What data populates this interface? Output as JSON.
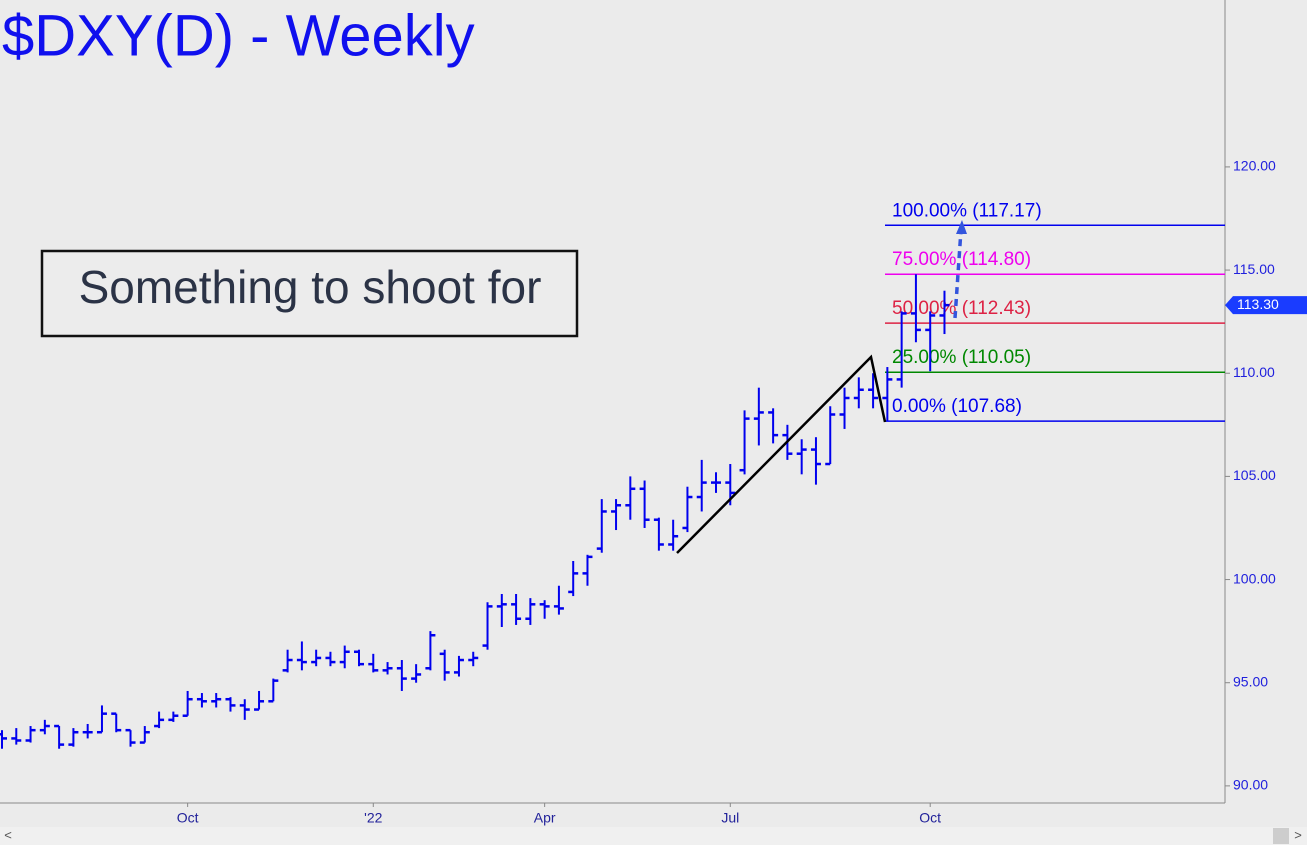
{
  "chart_data": {
    "type": "ohlc",
    "title": "$DXY(D) - Weekly",
    "annotation": "Something to shoot for",
    "color": "#0000ee",
    "categories": [
      null,
      null,
      null,
      null,
      null,
      null,
      null,
      null,
      null,
      null,
      null,
      null,
      null,
      "Oct",
      null,
      null,
      null,
      null,
      null,
      null,
      null,
      null,
      null,
      null,
      null,
      null,
      "'22",
      null,
      null,
      null,
      null,
      null,
      null,
      null,
      null,
      null,
      null,
      null,
      "Apr",
      null,
      null,
      null,
      null,
      null,
      null,
      null,
      null,
      null,
      null,
      null,
      null,
      "Jul",
      null,
      null,
      null,
      null,
      null,
      null,
      null,
      null,
      null,
      null,
      null,
      null,
      null,
      "Oct",
      null
    ],
    "open": [
      92.5,
      92.3,
      92.2,
      92.7,
      92.9,
      92.0,
      92.6,
      92.6,
      93.5,
      92.7,
      92.1,
      92.9,
      93.2,
      93.4,
      94.2,
      94.1,
      94.2,
      93.9,
      93.7,
      94.1,
      95.6,
      96.1,
      96.0,
      96.2,
      96.0,
      96.5,
      95.9,
      95.6,
      95.7,
      95.2,
      95.7,
      96.4,
      95.5,
      96.1,
      96.8,
      98.7,
      98.8,
      98.1,
      98.8,
      98.7,
      99.4,
      100.3,
      101.5,
      103.3,
      103.6,
      104.4,
      102.9,
      101.7,
      102.5,
      104.0,
      104.7,
      104.7,
      105.3,
      107.8,
      108.1,
      107.0,
      106.1,
      106.3,
      105.6,
      108.0,
      108.8,
      109.2,
      108.8,
      109.7,
      112.9,
      112.1,
      112.8
    ],
    "high": [
      92.7,
      92.8,
      92.9,
      93.2,
      92.9,
      92.8,
      93.0,
      93.9,
      93.5,
      92.7,
      92.9,
      93.6,
      93.6,
      94.6,
      94.5,
      94.5,
      94.3,
      94.2,
      94.6,
      95.2,
      96.6,
      97.0,
      96.6,
      96.5,
      96.8,
      96.6,
      96.4,
      96.0,
      96.1,
      95.9,
      97.5,
      96.6,
      96.3,
      96.5,
      98.9,
      99.3,
      99.3,
      99.1,
      99.0,
      99.7,
      100.9,
      101.2,
      103.9,
      103.9,
      105.0,
      104.8,
      103.0,
      102.9,
      104.5,
      105.8,
      105.2,
      105.6,
      108.2,
      109.3,
      108.3,
      107.5,
      106.8,
      106.9,
      108.4,
      109.3,
      109.8,
      110.0,
      110.3,
      113.0,
      114.8,
      113.0,
      114.0
    ],
    "low": [
      91.8,
      92.0,
      92.1,
      92.5,
      91.8,
      91.9,
      92.3,
      92.6,
      92.6,
      91.9,
      92.1,
      92.8,
      93.1,
      93.4,
      93.8,
      93.8,
      93.6,
      93.2,
      93.7,
      94.1,
      95.5,
      95.6,
      95.8,
      95.8,
      95.7,
      95.8,
      95.5,
      95.4,
      94.6,
      95.0,
      95.6,
      95.1,
      95.3,
      95.8,
      96.6,
      97.7,
      97.8,
      97.8,
      98.1,
      98.3,
      99.2,
      99.7,
      101.3,
      102.4,
      102.9,
      102.5,
      101.4,
      101.4,
      102.3,
      103.3,
      104.2,
      103.6,
      105.1,
      106.5,
      106.6,
      105.8,
      105.1,
      104.6,
      105.6,
      107.3,
      108.3,
      108.3,
      107.7,
      109.3,
      111.5,
      110.1,
      111.9
    ],
    "close": [
      92.3,
      92.2,
      92.7,
      92.9,
      92.0,
      92.6,
      92.6,
      93.5,
      92.7,
      92.1,
      92.6,
      93.2,
      93.4,
      94.2,
      94.1,
      94.2,
      93.9,
      93.7,
      94.1,
      95.1,
      96.1,
      96.0,
      96.2,
      96.0,
      96.5,
      95.9,
      95.6,
      95.7,
      95.2,
      95.4,
      97.3,
      95.5,
      96.1,
      96.2,
      98.7,
      98.8,
      98.1,
      98.8,
      98.7,
      98.6,
      100.3,
      101.1,
      103.3,
      103.6,
      104.4,
      102.9,
      101.7,
      102.1,
      104.0,
      104.7,
      104.7,
      104.2,
      107.8,
      108.1,
      107.0,
      106.1,
      106.3,
      105.6,
      108.0,
      108.8,
      109.2,
      108.8,
      109.7,
      112.9,
      112.1,
      112.8,
      113.3
    ],
    "ylim": [
      89.17,
      128.09
    ],
    "yticks": [
      {
        "value": 90,
        "label": "90.00"
      },
      {
        "value": 95,
        "label": "95.00"
      },
      {
        "value": 100,
        "label": "100.00"
      },
      {
        "value": 105,
        "label": "105.00"
      },
      {
        "value": 110,
        "label": "110.00"
      },
      {
        "value": 115,
        "label": "115.00"
      },
      {
        "value": 120,
        "label": "120.00"
      }
    ],
    "levels": [
      {
        "label": "100.00% (117.17)",
        "value": 117.17,
        "color": "#0000ee"
      },
      {
        "label": "75.00% (114.80)",
        "value": 114.8,
        "color": "#ee00ee"
      },
      {
        "label": "50.00% (112.43)",
        "value": 112.43,
        "color": "#dd2244"
      },
      {
        "label": "25.00% (110.05)",
        "value": 110.05,
        "color": "#008800"
      },
      {
        "label": "0.00% (107.68)",
        "value": 107.68,
        "color": "#0000ee"
      }
    ],
    "last": {
      "value": 113.3,
      "label": "113.30"
    }
  }
}
